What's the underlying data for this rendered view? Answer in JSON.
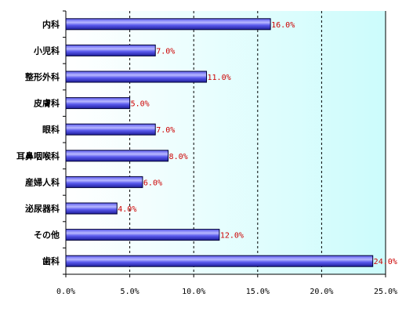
{
  "chart_data": {
    "type": "bar",
    "orientation": "horizontal",
    "categories": [
      "内科",
      "小児科",
      "整形外科",
      "皮膚科",
      "眼科",
      "耳鼻咽喉科",
      "産婦人科",
      "泌尿器科",
      "その他",
      "歯科"
    ],
    "values": [
      16.0,
      7.0,
      11.0,
      5.0,
      7.0,
      8.0,
      6.0,
      4.0,
      12.0,
      24.0
    ],
    "data_labels": [
      "16.0%",
      "7.0%",
      "11.0%",
      "5.0%",
      "7.0%",
      "8.0%",
      "6.0%",
      "4.0%",
      "12.0%",
      "24.0%"
    ],
    "x_ticks": [
      0,
      5,
      10,
      15,
      20,
      25
    ],
    "x_tick_labels": [
      "0.0%",
      "5.0%",
      "10.0%",
      "15.0%",
      "20.0%",
      "25.0%"
    ],
    "xlim": [
      0,
      25
    ],
    "unit": "%",
    "title": "",
    "xlabel": "",
    "ylabel": "",
    "grid": "vertical dashed",
    "legend": "none",
    "colors": {
      "bar_fill": "#5a5aee",
      "bar_highlight": "#b8b8ff",
      "bar_shadow": "#1e1e9a",
      "bar_stroke": "#000033",
      "plot_bg_left": "#ffffff",
      "plot_bg_right": "#ccfcfc",
      "grid": "#000000",
      "data_label": "#cc0000",
      "text": "#000000"
    }
  }
}
